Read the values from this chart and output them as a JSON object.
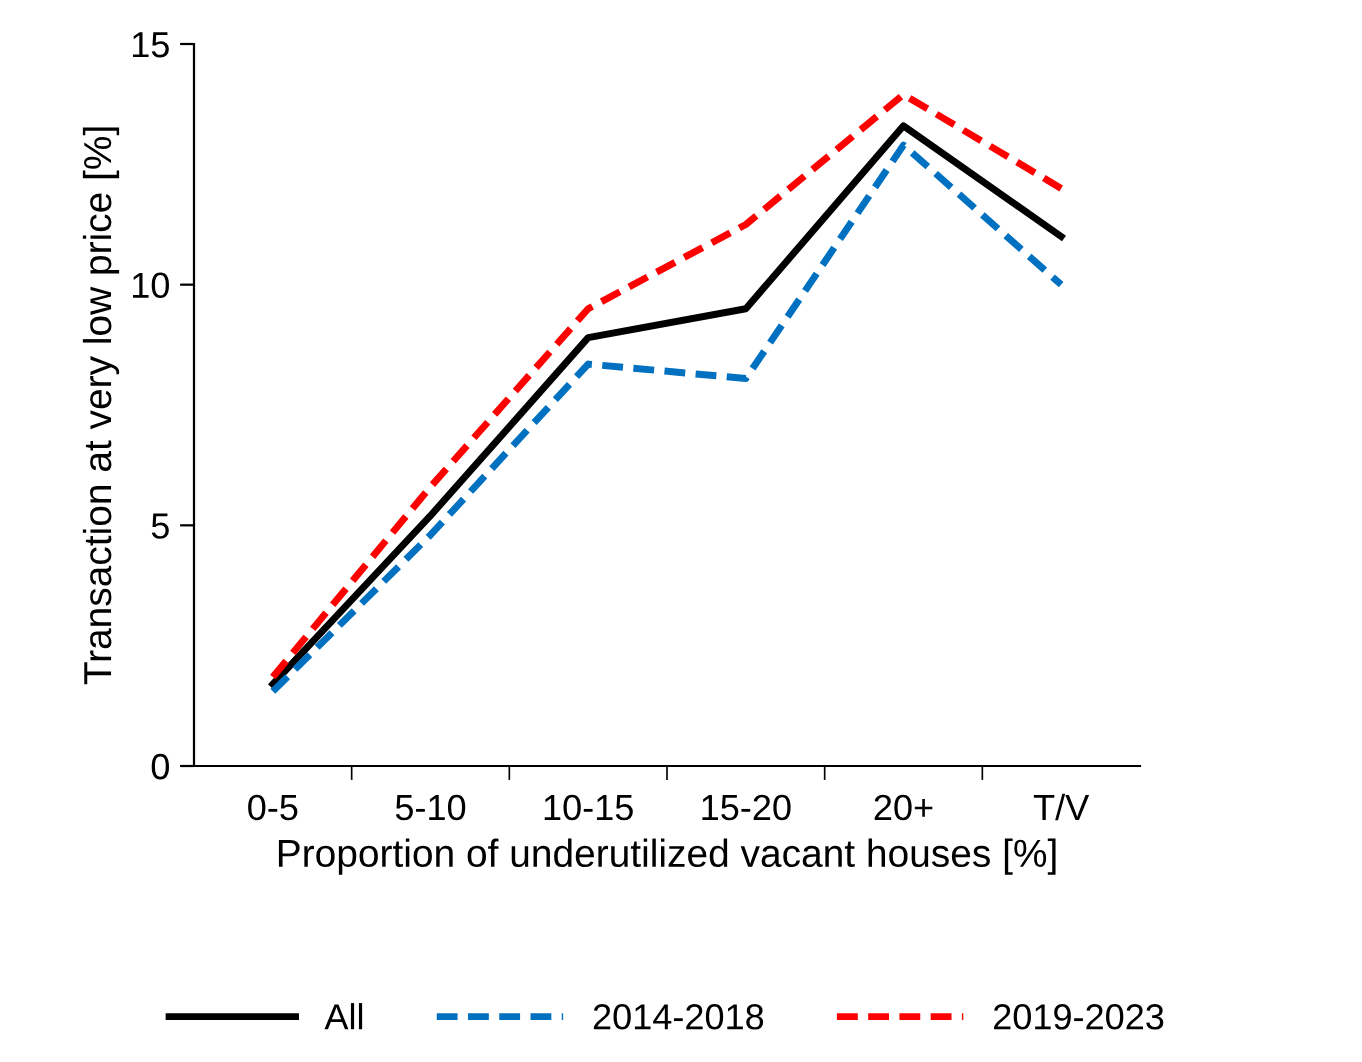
{
  "chart_data": {
    "type": "line",
    "xlabel": "Proportion of underutilized vacant houses [%]",
    "ylabel": "Transaction at very low price [%]",
    "categories": [
      "0-5",
      "5-10",
      "10-15",
      "15-20",
      "20+",
      "T/V"
    ],
    "series": [
      {
        "name": "All",
        "color": "#000000",
        "line_style": "solid",
        "values": [
          1.7,
          5.2,
          8.9,
          9.5,
          13.3,
          11.0
        ]
      },
      {
        "name": "2014-2018",
        "color": "#0070c0",
        "line_style": "dashed",
        "values": [
          1.55,
          4.8,
          8.35,
          8.05,
          12.9,
          10.0
        ]
      },
      {
        "name": "2019-2023",
        "color": "#ff0000",
        "line_style": "dashed",
        "values": [
          1.85,
          5.8,
          9.5,
          11.25,
          13.95,
          12.0
        ]
      }
    ],
    "ylim": [
      0,
      15
    ],
    "yticks": [
      0,
      5,
      10,
      15
    ],
    "grid": false,
    "legend": "bottom",
    "marker": "none"
  }
}
